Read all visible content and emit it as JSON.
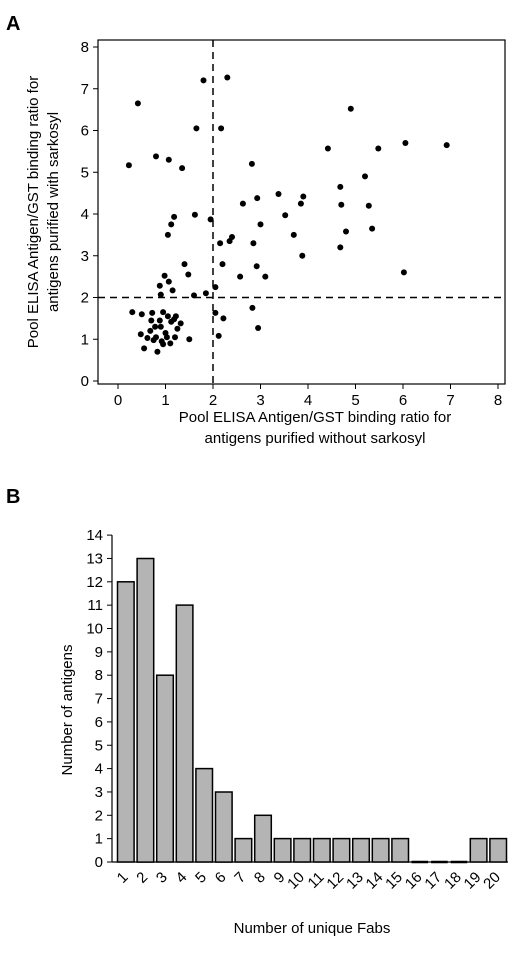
{
  "panels": [
    {
      "letter": "A",
      "chart_data": {
        "type": "scatter",
        "xlabel_lines": [
          "Pool ELISA Antigen/GST binding ratio for",
          "antigens purified without sarkosyl"
        ],
        "ylabel_lines": [
          "Pool ELISA Antigen/GST binding ratio for",
          "antigens purified with sarkosyl"
        ],
        "xlim": [
          0,
          8
        ],
        "ylim": [
          0,
          8
        ],
        "xticks": [
          0,
          1,
          2,
          3,
          4,
          5,
          6,
          7,
          8
        ],
        "yticks": [
          0,
          1,
          2,
          3,
          4,
          5,
          6,
          7,
          8
        ],
        "reference_lines": {
          "x": 2,
          "y": 2,
          "style": "dashed"
        },
        "grid": false,
        "points": [
          [
            0.42,
            6.65
          ],
          [
            0.23,
            5.17
          ],
          [
            0.8,
            5.38
          ],
          [
            1.07,
            5.3
          ],
          [
            1.35,
            5.1
          ],
          [
            1.65,
            6.05
          ],
          [
            1.8,
            7.2
          ],
          [
            2.3,
            7.27
          ],
          [
            2.17,
            6.05
          ],
          [
            1.95,
            3.87
          ],
          [
            1.12,
            3.75
          ],
          [
            1.18,
            3.93
          ],
          [
            1.05,
            3.5
          ],
          [
            1.62,
            3.98
          ],
          [
            2.15,
            3.3
          ],
          [
            2.35,
            3.35
          ],
          [
            2.4,
            3.45
          ],
          [
            2.63,
            4.25
          ],
          [
            2.82,
            5.2
          ],
          [
            2.93,
            4.38
          ],
          [
            3.0,
            3.75
          ],
          [
            3.38,
            4.48
          ],
          [
            3.52,
            3.97
          ],
          [
            3.7,
            3.5
          ],
          [
            3.85,
            4.25
          ],
          [
            3.9,
            4.42
          ],
          [
            3.88,
            3.0
          ],
          [
            2.85,
            3.3
          ],
          [
            2.92,
            2.75
          ],
          [
            3.1,
            2.5
          ],
          [
            2.57,
            2.5
          ],
          [
            2.2,
            2.8
          ],
          [
            2.05,
            2.25
          ],
          [
            2.22,
            1.5
          ],
          [
            2.83,
            1.75
          ],
          [
            2.95,
            1.27
          ],
          [
            2.05,
            1.63
          ],
          [
            2.12,
            1.08
          ],
          [
            1.85,
            2.1
          ],
          [
            1.4,
            2.8
          ],
          [
            1.48,
            2.55
          ],
          [
            1.6,
            2.05
          ],
          [
            1.5,
            1.0
          ],
          [
            1.32,
            1.38
          ],
          [
            1.18,
            1.48
          ],
          [
            1.25,
            1.25
          ],
          [
            0.88,
            2.28
          ],
          [
            0.9,
            2.07
          ],
          [
            0.98,
            2.52
          ],
          [
            1.07,
            2.38
          ],
          [
            1.15,
            2.17
          ],
          [
            0.72,
            1.63
          ],
          [
            0.78,
            1.3
          ],
          [
            0.8,
            1.05
          ],
          [
            0.75,
            0.98
          ],
          [
            0.83,
            0.7
          ],
          [
            0.55,
            0.78
          ],
          [
            0.92,
            0.95
          ],
          [
            0.95,
            0.88
          ],
          [
            1.0,
            1.15
          ],
          [
            1.05,
            1.55
          ],
          [
            1.12,
            1.42
          ],
          [
            1.2,
            1.05
          ],
          [
            1.1,
            0.9
          ],
          [
            0.95,
            1.65
          ],
          [
            0.88,
            1.45
          ],
          [
            0.48,
            1.12
          ],
          [
            0.68,
            1.2
          ],
          [
            0.5,
            1.6
          ],
          [
            0.3,
            1.65
          ],
          [
            0.62,
            1.03
          ],
          [
            1.03,
            1.05
          ],
          [
            0.9,
            1.3
          ],
          [
            1.22,
            1.55
          ],
          [
            0.7,
            1.45
          ],
          [
            4.42,
            5.57
          ],
          [
            4.9,
            6.52
          ],
          [
            4.68,
            4.65
          ],
          [
            4.7,
            4.22
          ],
          [
            4.8,
            3.58
          ],
          [
            4.68,
            3.2
          ],
          [
            5.2,
            4.9
          ],
          [
            5.28,
            4.2
          ],
          [
            5.35,
            3.65
          ],
          [
            5.48,
            5.57
          ],
          [
            6.05,
            5.7
          ],
          [
            6.02,
            2.6
          ],
          [
            6.92,
            5.65
          ]
        ]
      }
    },
    {
      "letter": "B",
      "chart_data": {
        "type": "bar",
        "xlabel": "Number of unique Fabs",
        "ylabel": "Number of antigens",
        "categories": [
          "1",
          "2",
          "3",
          "4",
          "5",
          "6",
          "7",
          "8",
          "9",
          "10",
          "11",
          "12",
          "13",
          "14",
          "15",
          "16",
          "17",
          "18",
          "19",
          "20"
        ],
        "values": [
          12,
          13,
          8,
          11,
          4,
          3,
          1,
          2,
          1,
          1,
          1,
          1,
          1,
          1,
          1,
          0,
          0,
          0,
          1,
          1
        ],
        "ylim": [
          0,
          14
        ],
        "yticks": [
          0,
          1,
          2,
          3,
          4,
          5,
          6,
          7,
          8,
          9,
          10,
          11,
          12,
          13,
          14
        ],
        "bar_color": "#b4b4b4",
        "grid": false
      }
    }
  ]
}
